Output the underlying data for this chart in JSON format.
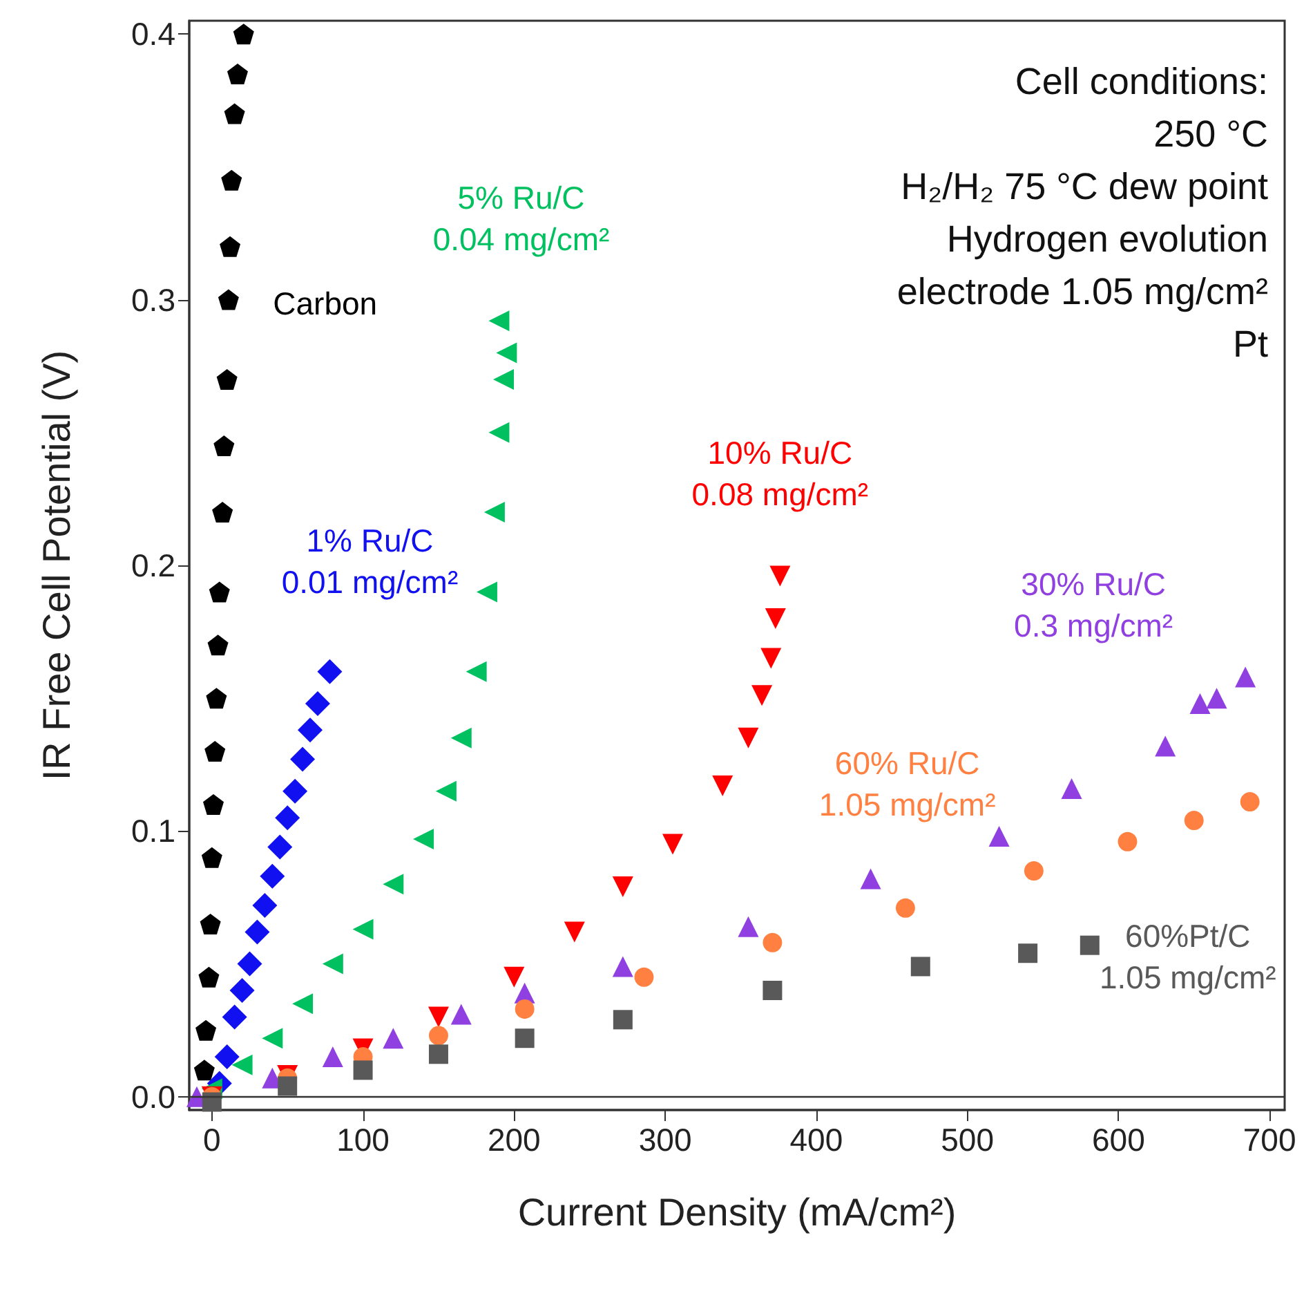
{
  "chart_data": {
    "type": "scatter",
    "xlabel": "Current Density (mA/cm²)",
    "ylabel": "IR Free Cell Potential (V)",
    "xlim": [
      -15,
      710
    ],
    "xticks": [
      0,
      100,
      200,
      300,
      400,
      500,
      600,
      700
    ],
    "ylim": [
      -0.005,
      0.405
    ],
    "yticks": [
      {
        "value": 0,
        "label": "0.0"
      },
      0.1,
      0.2,
      0.3,
      0.4
    ],
    "grid": false,
    "legend": false,
    "ref_lines": [
      {
        "axis": "y",
        "value": 0,
        "color": "#333333"
      }
    ],
    "annotations": [
      "Cell conditions:\n250 °C\nH₂/H₂ 75 °C dew point\nHydrogen evolution\nelectrode 1.05 mg/cm²\nPt"
    ],
    "series": [
      {
        "name": "Carbon",
        "color": "#000000",
        "x": [
          -5,
          -4,
          -2,
          -1,
          0,
          1,
          2,
          3,
          4,
          5,
          7,
          8,
          10,
          11,
          12,
          13,
          15,
          17,
          21
        ],
        "values": [
          0.01,
          0.025,
          0.045,
          0.065,
          0.09,
          0.11,
          0.13,
          0.15,
          0.17,
          0.19,
          0.22,
          0.245,
          0.27,
          0.3,
          0.32,
          0.345,
          0.37,
          0.385,
          0.4
        ]
      },
      {
        "name": "1% Ru/C\n0.01 mg/cm²",
        "color": "#1010f0",
        "marker": "diamond",
        "x": [
          5,
          10,
          15,
          20,
          25,
          30,
          35,
          40,
          45,
          50,
          55,
          60,
          65,
          70,
          78
        ],
        "values": [
          0.005,
          0.015,
          0.03,
          0.04,
          0.05,
          0.062,
          0.072,
          0.083,
          0.094,
          0.105,
          0.115,
          0.127,
          0.138,
          0.148,
          0.16
        ]
      },
      {
        "name": "5% Ru/C\n0.04 mg/cm²",
        "color": "#00c060",
        "marker": "triangle-left",
        "x": [
          0,
          20,
          40,
          60,
          80,
          100,
          120,
          140,
          155,
          165,
          175,
          182,
          187,
          190,
          193,
          195,
          190
        ],
        "values": [
          0.003,
          0.012,
          0.022,
          0.035,
          0.05,
          0.063,
          0.08,
          0.097,
          0.115,
          0.135,
          0.16,
          0.19,
          0.22,
          0.25,
          0.27,
          0.28,
          0.292
        ]
      },
      {
        "name": "10% Ru/C\n0.08 mg/cm²",
        "color": "#ff0000",
        "marker": "triangle-down",
        "x": [
          0,
          50,
          100,
          150,
          200,
          240,
          272,
          305,
          338,
          355,
          364,
          370,
          373,
          376
        ],
        "values": [
          0,
          0.008,
          0.018,
          0.03,
          0.045,
          0.062,
          0.079,
          0.095,
          0.117,
          0.135,
          0.151,
          0.165,
          0.18,
          0.196
        ]
      },
      {
        "name": "30% Ru/C\n0.3 mg/cm²",
        "color": "#9040e0",
        "marker": "triangle",
        "x": [
          -10,
          40,
          80,
          120,
          165,
          207,
          272,
          355,
          436,
          521,
          569,
          631,
          654,
          665,
          684
        ],
        "values": [
          0,
          0.007,
          0.015,
          0.022,
          0.031,
          0.039,
          0.049,
          0.064,
          0.082,
          0.098,
          0.116,
          0.132,
          0.148,
          0.15,
          0.158
        ]
      },
      {
        "name": "60% Ru/C\n1.05 mg/cm²",
        "color": "#ff8040",
        "marker": "circle",
        "x": [
          0,
          50,
          100,
          150,
          207,
          286,
          371,
          459,
          544,
          606,
          650,
          687
        ],
        "values": [
          0,
          0.007,
          0.015,
          0.023,
          0.033,
          0.045,
          0.058,
          0.071,
          0.085,
          0.096,
          0.104,
          0.111
        ]
      },
      {
        "name": "60%Pt/C\n1.05 mg/cm²",
        "color": "#595959",
        "marker": "square",
        "x": [
          0,
          50,
          100,
          150,
          207,
          272,
          371,
          469,
          540,
          581
        ],
        "values": [
          -0.002,
          0.004,
          0.01,
          0.016,
          0.022,
          0.029,
          0.04,
          0.049,
          0.054,
          0.057
        ]
      }
    ]
  }
}
